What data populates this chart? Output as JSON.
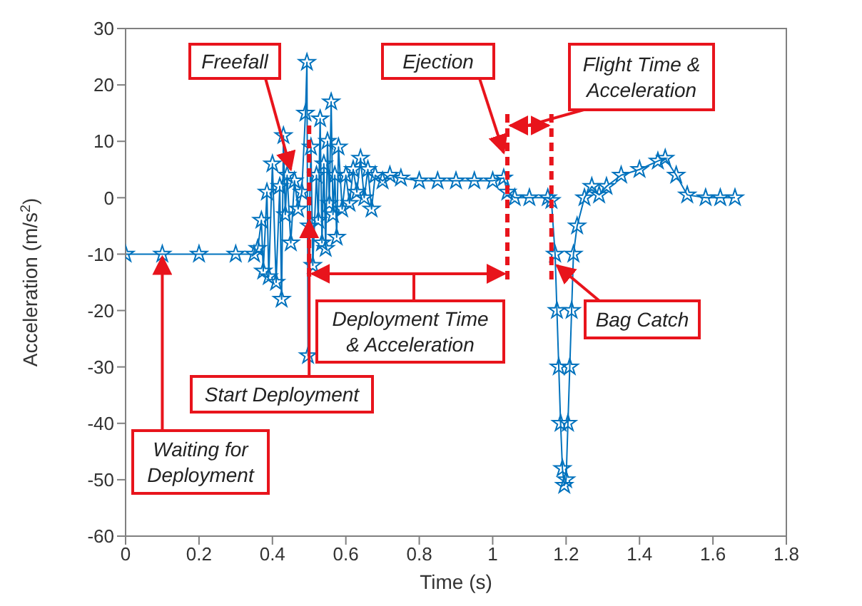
{
  "chart_data": {
    "type": "line",
    "xlabel": "Time (s)",
    "ylabel": "Acceleration (m/s$^{2}$)",
    "xlim": [
      0,
      1.8
    ],
    "xticks": [
      0,
      0.2,
      0.4,
      0.6,
      0.8,
      1,
      1.2,
      1.4,
      1.6,
      1.8
    ],
    "ylim": [
      -60,
      30
    ],
    "yticks": [
      -60,
      -50,
      -40,
      -30,
      -20,
      -10,
      0,
      10,
      20,
      30
    ],
    "grid": false,
    "marker": "star",
    "line_style": "solid",
    "x": [
      0,
      0.1,
      0.2,
      0.3,
      0.35,
      0.36,
      0.37,
      0.375,
      0.385,
      0.39,
      0.4,
      0.41,
      0.42,
      0.425,
      0.43,
      0.435,
      0.44,
      0.45,
      0.46,
      0.47,
      0.48,
      0.49,
      0.494,
      0.497,
      0.5,
      0.505,
      0.51,
      0.52,
      0.525,
      0.53,
      0.535,
      0.54,
      0.545,
      0.55,
      0.555,
      0.56,
      0.565,
      0.57,
      0.575,
      0.58,
      0.59,
      0.6,
      0.61,
      0.62,
      0.63,
      0.64,
      0.65,
      0.66,
      0.67,
      0.68,
      0.7,
      0.72,
      0.75,
      0.8,
      0.85,
      0.9,
      0.95,
      1,
      1.03,
      1.04,
      1.06,
      1.1,
      1.15,
      1.16,
      1.17,
      1.175,
      1.18,
      1.185,
      1.19,
      1.195,
      1.2,
      1.205,
      1.21,
      1.215,
      1.22,
      1.23,
      1.25,
      1.27,
      1.29,
      1.31,
      1.35,
      1.4,
      1.45,
      1.47,
      1.5,
      1.53,
      1.58,
      1.62,
      1.66
    ],
    "series": [
      {
        "color": "#0072bd",
        "values": [
          -10,
          -10,
          -10,
          -10,
          -10,
          -9,
          -4,
          -13,
          1,
          -14,
          6,
          -15,
          2,
          -18,
          11,
          -3,
          4,
          -8,
          3,
          -2,
          1,
          15,
          24,
          -28,
          -5,
          9,
          -12,
          4,
          -4,
          14,
          -8,
          6,
          -9,
          10,
          -1,
          17,
          -3,
          4,
          -7,
          9,
          -2,
          4,
          -1,
          5,
          1,
          7,
          0,
          5,
          -2,
          4,
          3,
          4,
          3.5,
          3,
          3,
          3,
          3,
          3,
          3.5,
          1,
          0,
          0,
          0,
          -0.5,
          -10,
          -20,
          -30,
          -40,
          -48,
          -51,
          -50,
          -40,
          -30,
          -20,
          -10,
          -5,
          0,
          2,
          0.5,
          2,
          4,
          5,
          6.5,
          7,
          4,
          0.5,
          0,
          0,
          0
        ]
      }
    ],
    "ref_lines": [
      {
        "axis": "x",
        "value": 0.5,
        "color": "#e8141c",
        "line_style": "dashed"
      },
      {
        "axis": "x",
        "value": 1.04,
        "color": "#e8141c",
        "line_style": "dashed"
      },
      {
        "axis": "x",
        "value": 1.16,
        "color": "#e8141c",
        "line_style": "dashed"
      }
    ],
    "annotations": [
      {
        "text": "Freefall",
        "x": 0.45,
        "y": 5
      },
      {
        "text": "Ejection",
        "x": 1.03,
        "y": 8
      },
      "Flight Time &\nAcceleration",
      "Deployment Time\n& Acceleration",
      {
        "text": "Bag Catch",
        "x": 1.175,
        "y": -12
      },
      {
        "text": "Start Deployment",
        "x": 0.5,
        "y": -4
      },
      {
        "text": "Waiting for\nDeployment",
        "x": 0.1,
        "y": -10.5
      }
    ]
  }
}
